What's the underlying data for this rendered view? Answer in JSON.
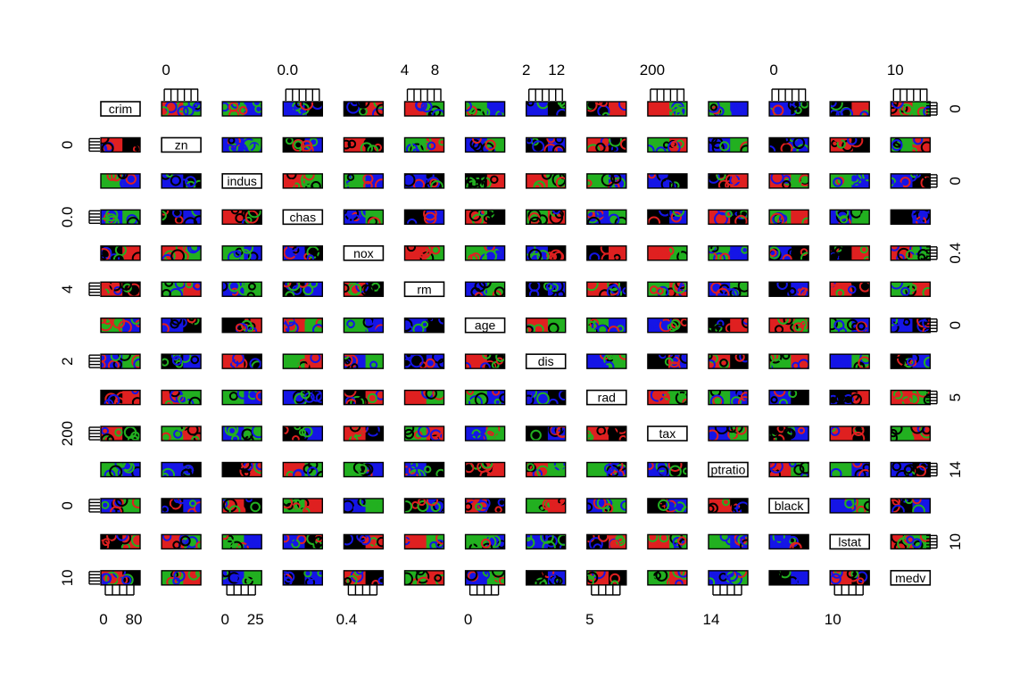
{
  "chart_data": {
    "type": "scatter",
    "title": "",
    "variables": [
      "crim",
      "zn",
      "indus",
      "chas",
      "nox",
      "rm",
      "age",
      "dis",
      "rad",
      "tax",
      "ptratio",
      "black",
      "lstat",
      "medv"
    ],
    "diagonal_labels": [
      "crim",
      "zn",
      "indus",
      "chas",
      "nox",
      "rm",
      "age",
      "dis",
      "rad",
      "tax",
      "ptratio",
      "black",
      "lstat",
      "medv"
    ],
    "group_colors": [
      "#000000",
      "#DF2020",
      "#22B020",
      "#1515E6"
    ],
    "axis_tick_labels": {
      "top": [
        {
          "col": 1,
          "labels": [
            "0"
          ]
        },
        {
          "col": 3,
          "labels": [
            "0.0"
          ]
        },
        {
          "col": 5,
          "labels": [
            "4",
            "8"
          ]
        },
        {
          "col": 7,
          "labels": [
            "2",
            "12"
          ]
        },
        {
          "col": 9,
          "labels": [
            "200"
          ]
        },
        {
          "col": 11,
          "labels": [
            "0"
          ]
        },
        {
          "col": 13,
          "labels": [
            "10"
          ]
        }
      ],
      "bottom": [
        {
          "col": 0,
          "labels": [
            "0",
            "80"
          ]
        },
        {
          "col": 2,
          "labels": [
            "0",
            "25"
          ]
        },
        {
          "col": 4,
          "labels": [
            "0.4"
          ]
        },
        {
          "col": 6,
          "labels": [
            "0"
          ]
        },
        {
          "col": 8,
          "labels": [
            "5"
          ]
        },
        {
          "col": 10,
          "labels": [
            "14"
          ]
        },
        {
          "col": 12,
          "labels": [
            "10"
          ]
        }
      ],
      "left": [
        {
          "row": 1,
          "labels": [
            "0"
          ]
        },
        {
          "row": 3,
          "labels": [
            "0.0"
          ]
        },
        {
          "row": 5,
          "labels": [
            "4"
          ]
        },
        {
          "row": 7,
          "labels": [
            "2"
          ]
        },
        {
          "row": 9,
          "labels": [
            "200"
          ]
        },
        {
          "row": 11,
          "labels": [
            "0"
          ]
        },
        {
          "row": 13,
          "labels": [
            "10"
          ]
        }
      ],
      "right": [
        {
          "row": 0,
          "labels": [
            "0"
          ]
        },
        {
          "row": 2,
          "labels": [
            "0"
          ]
        },
        {
          "row": 4,
          "labels": [
            "0.4"
          ]
        },
        {
          "row": 6,
          "labels": [
            "0"
          ]
        },
        {
          "row": 8,
          "labels": [
            "5"
          ]
        },
        {
          "row": 10,
          "labels": [
            "14"
          ]
        },
        {
          "row": 12,
          "labels": [
            "10"
          ]
        }
      ]
    },
    "grid": false,
    "legend": "none"
  }
}
